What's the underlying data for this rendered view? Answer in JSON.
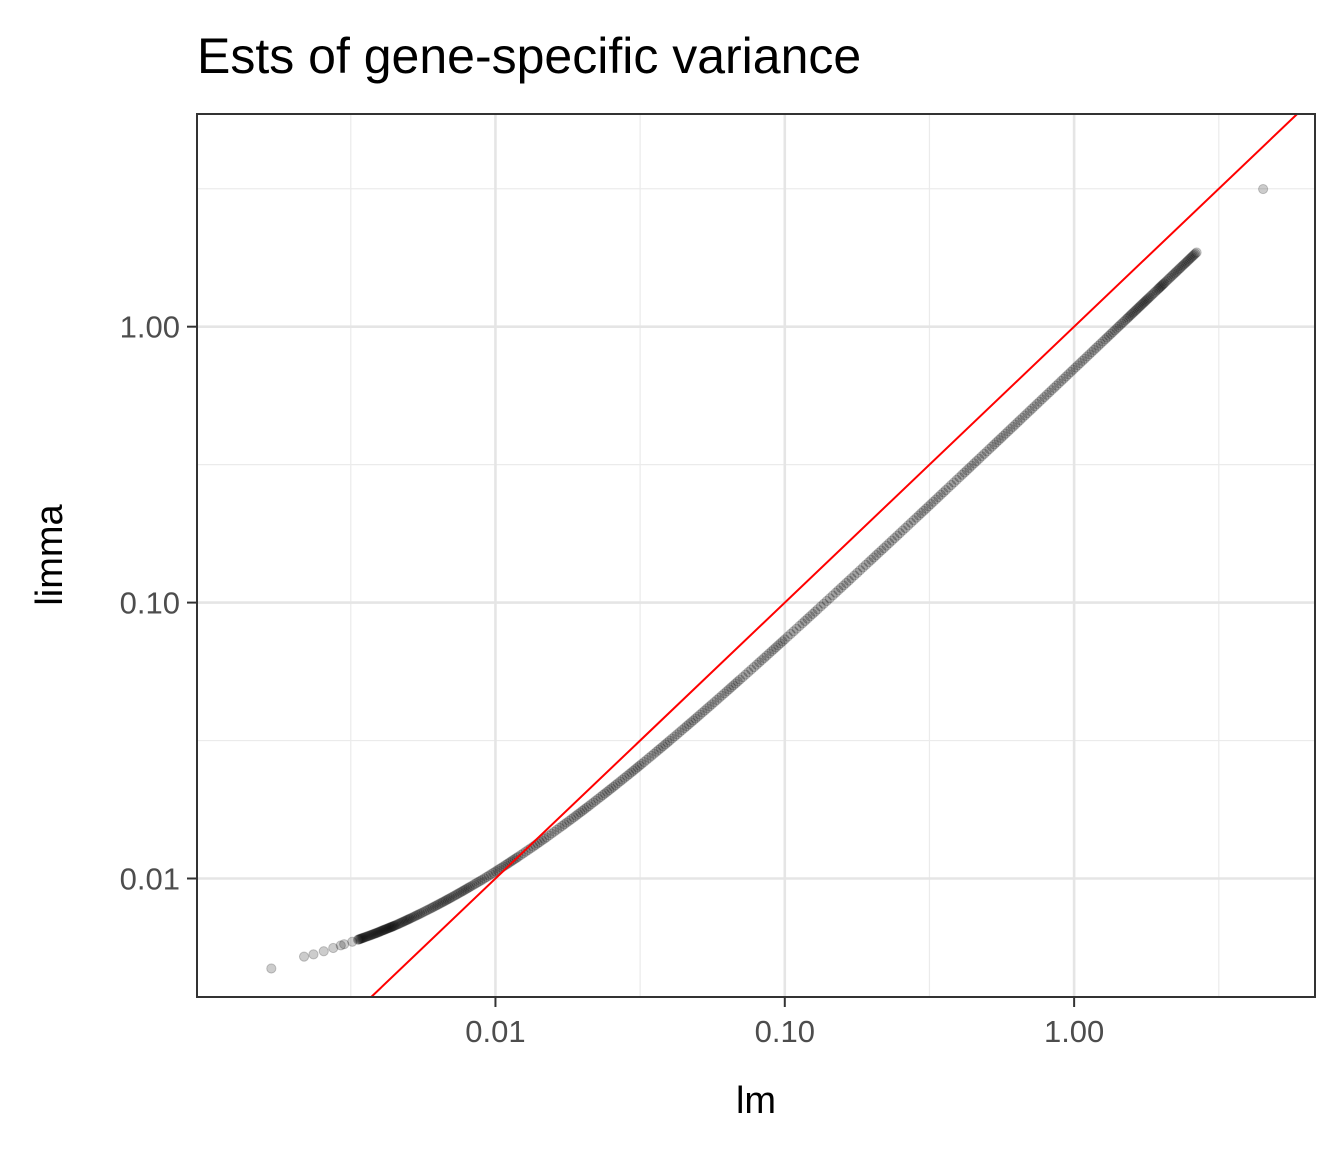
{
  "chart_data": {
    "type": "scatter",
    "title": "Ests of gene-specific variance",
    "xlabel": "lm",
    "ylabel": "limma",
    "x_scale": "log10",
    "y_scale": "log10",
    "xlim": [
      0.00093,
      6.8
    ],
    "ylim": [
      0.00372,
      5.9
    ],
    "x_ticks": [
      0.01,
      0.1,
      1.0
    ],
    "x_tick_labels": [
      "0.01",
      "0.10",
      "1.00"
    ],
    "y_ticks": [
      0.01,
      0.1,
      1.0
    ],
    "y_tick_labels": [
      "0.01",
      "0.10",
      "1.00"
    ],
    "grid": true,
    "legend": "none",
    "point_color": "#000000",
    "point_alpha": 0.2,
    "reference_line": {
      "type": "identity",
      "slope": 1,
      "intercept": 0,
      "color": "#ff0000"
    },
    "series": [
      {
        "points": [
          [
            0.00168,
            0.00472
          ],
          [
            0.00218,
            0.00521
          ],
          [
            0.00235,
            0.00531
          ],
          [
            0.00255,
            0.00545
          ],
          [
            0.00275,
            0.0056
          ],
          [
            0.00292,
            0.00572
          ],
          [
            0.003,
            0.00578
          ],
          [
            0.0032,
            0.0059
          ],
          [
            0.00335,
            0.006
          ],
          [
            0.0035,
            0.0061
          ],
          [
            0.0037,
            0.00623
          ],
          [
            0.0039,
            0.00636
          ],
          [
            0.0041,
            0.0065
          ],
          [
            0.0043,
            0.00663
          ],
          [
            0.0045,
            0.00676
          ],
          [
            0.0048,
            0.00697
          ],
          [
            0.0051,
            0.00718
          ],
          [
            0.0055,
            0.00746
          ],
          [
            0.006,
            0.00781
          ],
          [
            0.0065,
            0.00816
          ],
          [
            0.007,
            0.00851
          ],
          [
            0.0076,
            0.00893
          ],
          [
            0.0082,
            0.00935
          ],
          [
            0.009,
            0.0099
          ],
          [
            0.01,
            0.0106
          ],
          [
            0.011,
            0.0113
          ],
          [
            0.012,
            0.012
          ],
          [
            0.0135,
            0.01305
          ],
          [
            0.015,
            0.0141
          ],
          [
            0.017,
            0.0155
          ],
          [
            0.019,
            0.0169
          ],
          [
            0.021,
            0.0183
          ],
          [
            0.0235,
            0.02005
          ],
          [
            0.026,
            0.0218
          ],
          [
            0.029,
            0.0239
          ],
          [
            0.032,
            0.026
          ],
          [
            0.036,
            0.0288
          ],
          [
            0.04,
            0.0316
          ],
          [
            0.045,
            0.0351
          ],
          [
            0.05,
            0.0386
          ],
          [
            0.056,
            0.0428
          ],
          [
            0.063,
            0.0477
          ],
          [
            0.07,
            0.0526
          ],
          [
            0.08,
            0.0596
          ],
          [
            0.09,
            0.0666
          ],
          [
            0.1,
            0.0736
          ],
          [
            0.115,
            0.0841
          ],
          [
            0.13,
            0.0946
          ],
          [
            0.15,
            0.1086
          ],
          [
            0.17,
            0.1226
          ],
          [
            0.195,
            0.1401
          ],
          [
            0.22,
            0.1576
          ],
          [
            0.25,
            0.1786
          ],
          [
            0.285,
            0.2031
          ],
          [
            0.32,
            0.2276
          ],
          [
            0.36,
            0.2556
          ],
          [
            0.41,
            0.2906
          ],
          [
            0.46,
            0.3256
          ],
          [
            0.52,
            0.3676
          ],
          [
            0.58,
            0.4096
          ],
          [
            0.65,
            0.4586
          ],
          [
            0.73,
            0.5146
          ],
          [
            0.82,
            0.5776
          ],
          [
            0.92,
            0.6476
          ],
          [
            1.03,
            0.7246
          ],
          [
            1.15,
            0.8086
          ],
          [
            1.28,
            0.8996
          ],
          [
            1.4,
            0.9836
          ],
          [
            1.52,
            1.0676
          ],
          [
            1.62,
            1.1376
          ],
          [
            1.72,
            1.2076
          ],
          [
            1.82,
            1.2776
          ],
          [
            1.95,
            1.3686
          ],
          [
            2.05,
            1.4386
          ],
          [
            2.2,
            1.5436
          ],
          [
            2.35,
            1.6486
          ],
          [
            2.5,
            1.7536
          ],
          [
            2.65,
            1.8586
          ],
          [
            4.5,
            3.1536
          ]
        ]
      }
    ]
  }
}
